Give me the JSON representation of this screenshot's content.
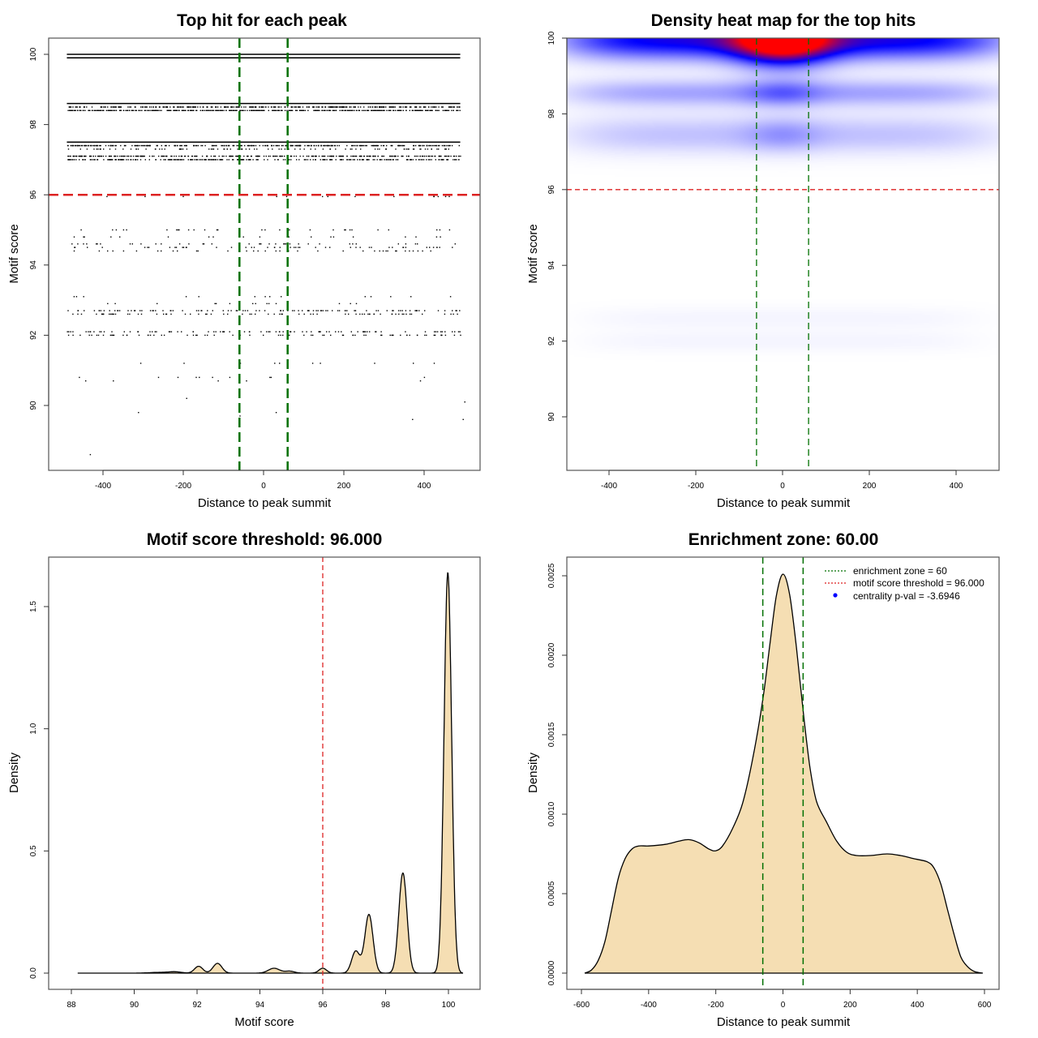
{
  "colors": {
    "threshold_line": "#dd2222",
    "zone_line": "#007000",
    "density_fill": "#f5deb3",
    "heat_low": "#ffffff",
    "heat_mid": "#0000ff",
    "heat_high": "#ff0000",
    "legend_point": "#0000ff"
  },
  "chart_data": [
    {
      "id": "scatter",
      "type": "scatter",
      "title": "Top hit for each peak",
      "xlabel": "Distance to peak summit",
      "ylabel": "Motif score",
      "xlim": [
        -500,
        500
      ],
      "ylim": [
        88.2,
        100.5
      ],
      "xticks": [
        -400,
        -200,
        0,
        200,
        400
      ],
      "yticks": [
        90,
        92,
        94,
        96,
        98,
        100
      ],
      "threshold": 96,
      "enrichment_zone": [
        -60,
        60
      ],
      "x_range_points": [
        -490,
        490
      ],
      "score_bands": [
        {
          "y": 100.0,
          "density": 1.0
        },
        {
          "y": 99.9,
          "density": 1.0
        },
        {
          "y": 98.6,
          "density": 0.95
        },
        {
          "y": 98.5,
          "density": 0.7
        },
        {
          "y": 98.4,
          "density": 0.85
        },
        {
          "y": 97.5,
          "density": 0.95
        },
        {
          "y": 97.4,
          "density": 0.6
        },
        {
          "y": 97.3,
          "density": 0.2
        },
        {
          "y": 97.1,
          "density": 0.6
        },
        {
          "y": 97.0,
          "density": 0.55
        },
        {
          "y": 95.95,
          "density": 0.03
        },
        {
          "y": 95.0,
          "density": 0.06
        },
        {
          "y": 94.8,
          "density": 0.04
        },
        {
          "y": 94.6,
          "density": 0.08
        },
        {
          "y": 94.5,
          "density": 0.1
        },
        {
          "y": 94.4,
          "density": 0.08
        },
        {
          "y": 93.1,
          "density": 0.03
        },
        {
          "y": 92.9,
          "density": 0.03
        },
        {
          "y": 92.7,
          "density": 0.2
        },
        {
          "y": 92.6,
          "density": 0.15
        },
        {
          "y": 92.1,
          "density": 0.18
        },
        {
          "y": 92.0,
          "density": 0.15
        },
        {
          "y": 91.2,
          "density": 0.02
        },
        {
          "y": 90.8,
          "density": 0.02
        },
        {
          "y": 90.7,
          "density": 0.01
        }
      ],
      "outlier_points": [
        [
          -433,
          88.6
        ],
        [
          -313,
          89.8
        ],
        [
          -193,
          90.2
        ],
        [
          30,
          89.8
        ],
        [
          -60,
          89.7
        ],
        [
          370,
          89.6
        ],
        [
          496,
          89.6
        ],
        [
          500,
          90.1
        ]
      ]
    },
    {
      "id": "heatmap",
      "type": "heatmap",
      "title": "Density heat map for the top hits",
      "xlabel": "Distance to peak summit",
      "ylabel": "Motif score",
      "xlim": [
        -500,
        500
      ],
      "ylim": [
        88.5,
        100
      ],
      "xticks": [
        -400,
        -200,
        0,
        200,
        400
      ],
      "yticks": [
        90,
        92,
        94,
        96,
        98,
        100
      ],
      "threshold": 96,
      "enrichment_zone": [
        -60,
        60
      ],
      "blobs": [
        {
          "x": 0,
          "y": 99.95,
          "sx": 500,
          "sy": 0.35,
          "v": 0.55
        },
        {
          "x": 0,
          "y": 100.0,
          "sx": 75,
          "sy": 0.45,
          "v": 1.0
        },
        {
          "x": 0,
          "y": 98.55,
          "sx": 500,
          "sy": 0.25,
          "v": 0.18
        },
        {
          "x": 0,
          "y": 98.55,
          "sx": 60,
          "sy": 0.25,
          "v": 0.15
        },
        {
          "x": 0,
          "y": 97.45,
          "sx": 500,
          "sy": 0.35,
          "v": 0.12
        },
        {
          "x": 0,
          "y": 97.45,
          "sx": 60,
          "sy": 0.3,
          "v": 0.1
        },
        {
          "x": 0,
          "y": 92.6,
          "sx": 450,
          "sy": 0.2,
          "v": 0.02
        },
        {
          "x": 0,
          "y": 92.0,
          "sx": 450,
          "sy": 0.2,
          "v": 0.02
        }
      ]
    },
    {
      "id": "score-density",
      "type": "area",
      "title": "Motif score threshold: 96.000",
      "xlabel": "Motif score",
      "ylabel": "Density",
      "xlim": [
        87.8,
        101
      ],
      "ylim": [
        -0.06,
        1.72
      ],
      "xticks": [
        88,
        90,
        92,
        94,
        96,
        98,
        100
      ],
      "yticks": [
        0.0,
        0.5,
        1.0,
        1.5
      ],
      "ytick_labels": [
        "0.0",
        "0.5",
        "1.0",
        "1.5"
      ],
      "threshold": 96,
      "x_range": [
        88.2,
        100.45
      ],
      "peaks": [
        {
          "x": 90.8,
          "h": 0.003,
          "w": 0.3
        },
        {
          "x": 91.3,
          "h": 0.005,
          "w": 0.2
        },
        {
          "x": 92.05,
          "h": 0.028,
          "w": 0.13
        },
        {
          "x": 92.65,
          "h": 0.04,
          "w": 0.14
        },
        {
          "x": 94.45,
          "h": 0.02,
          "w": 0.18
        },
        {
          "x": 94.95,
          "h": 0.008,
          "w": 0.15
        },
        {
          "x": 96.0,
          "h": 0.02,
          "w": 0.12
        },
        {
          "x": 97.05,
          "h": 0.09,
          "w": 0.13
        },
        {
          "x": 97.47,
          "h": 0.24,
          "w": 0.13
        },
        {
          "x": 98.55,
          "h": 0.41,
          "w": 0.13
        },
        {
          "x": 99.98,
          "h": 1.64,
          "w": 0.12
        }
      ]
    },
    {
      "id": "distance-density",
      "type": "area",
      "title": "Enrichment zone: 60.00",
      "xlabel": "Distance to peak summit",
      "ylabel": "Density",
      "xlim": [
        -640,
        640
      ],
      "ylim": [
        -0.0001,
        0.0026
      ],
      "xticks": [
        -600,
        -400,
        -200,
        0,
        200,
        400,
        600
      ],
      "yticks": [
        0.0,
        0.0005,
        0.001,
        0.0015,
        0.002,
        0.0025
      ],
      "ytick_labels": [
        "0.0000",
        "0.0005",
        "0.0010",
        "0.0015",
        "0.0020",
        "0.0025"
      ],
      "enrichment_zone": [
        -60,
        60
      ],
      "curve": [
        [
          -590,
          0.0
        ],
        [
          -570,
          2e-05
        ],
        [
          -550,
          8e-05
        ],
        [
          -530,
          0.0002
        ],
        [
          -510,
          0.0004
        ],
        [
          -490,
          0.0006
        ],
        [
          -470,
          0.00072
        ],
        [
          -450,
          0.00078
        ],
        [
          -430,
          0.0008
        ],
        [
          -400,
          0.0008
        ],
        [
          -350,
          0.00081
        ],
        [
          -310,
          0.00083
        ],
        [
          -280,
          0.00084
        ],
        [
          -250,
          0.00082
        ],
        [
          -220,
          0.00078
        ],
        [
          -200,
          0.00077
        ],
        [
          -180,
          0.0008
        ],
        [
          -150,
          0.00091
        ],
        [
          -120,
          0.00107
        ],
        [
          -90,
          0.00135
        ],
        [
          -60,
          0.00172
        ],
        [
          -40,
          0.00205
        ],
        [
          -20,
          0.00237
        ],
        [
          0,
          0.00251
        ],
        [
          20,
          0.00238
        ],
        [
          40,
          0.00205
        ],
        [
          60,
          0.00165
        ],
        [
          80,
          0.0013
        ],
        [
          100,
          0.00108
        ],
        [
          130,
          0.00095
        ],
        [
          160,
          0.00083
        ],
        [
          190,
          0.00076
        ],
        [
          220,
          0.00074
        ],
        [
          260,
          0.00074
        ],
        [
          310,
          0.00075
        ],
        [
          350,
          0.00074
        ],
        [
          390,
          0.00072
        ],
        [
          430,
          0.0007
        ],
        [
          450,
          0.00066
        ],
        [
          470,
          0.00056
        ],
        [
          490,
          0.0004
        ],
        [
          510,
          0.00024
        ],
        [
          530,
          0.0001
        ],
        [
          550,
          4e-05
        ],
        [
          570,
          1e-05
        ],
        [
          595,
          0.0
        ]
      ],
      "legend": [
        {
          "label": "enrichment zone = 60",
          "kind": "dotted-line",
          "color_key": "zone_line"
        },
        {
          "label": "motif score threshold = 96.000",
          "kind": "dotted-line",
          "color_key": "threshold_line"
        },
        {
          "label": "centrality p-val = -3.6946",
          "kind": "point",
          "color_key": "legend_point"
        }
      ],
      "legend_position": "top-right"
    }
  ]
}
